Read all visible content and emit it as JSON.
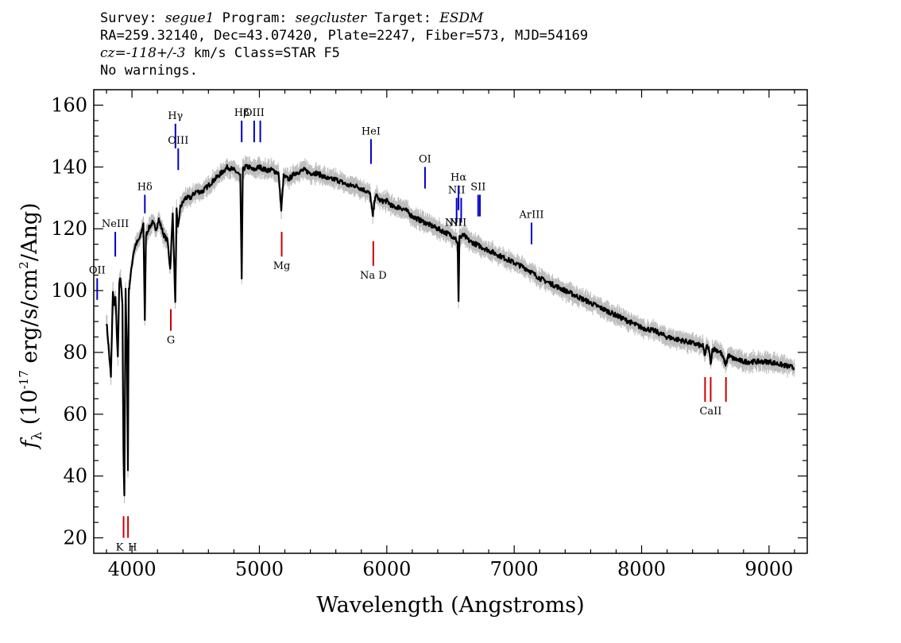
{
  "header": {
    "survey_label": "Survey:",
    "survey": "segue1",
    "program_label": "Program:",
    "program": "segcluster",
    "target_label": "Target:",
    "target": "ESDM",
    "line2": "RA=259.32140, Dec=43.07420, Plate=2247, Fiber=573, MJD=54169",
    "cz": "cz=-118+/-3",
    "cz_rest": " km/s Class=STAR F5",
    "warnings": "No warnings."
  },
  "chart_data": {
    "type": "line",
    "xlabel": "Wavelength (Angstroms)",
    "ylabel": "f_λ (10^-17 erg/s/cm^2/Ang)",
    "xlim": [
      3700,
      9300
    ],
    "ylim": [
      15,
      165
    ],
    "xticks": [
      4000,
      5000,
      6000,
      7000,
      8000,
      9000
    ],
    "yticks": [
      20,
      40,
      60,
      80,
      100,
      120,
      140,
      160
    ],
    "grid": false,
    "colors": {
      "flux": "#000000",
      "error_band": "#bdbdbd",
      "emission": "#0000cc",
      "absorption": "#cc0000"
    },
    "series": [
      {
        "x": [
          3800,
          3820,
          3835,
          3850,
          3860,
          3870,
          3889,
          3900,
          3910,
          3925,
          3933,
          3940,
          3950,
          3960,
          3968,
          3975,
          3990,
          4010,
          4030,
          4050,
          4070,
          4090,
          4101,
          4110,
          4130,
          4160,
          4190,
          4210,
          4250,
          4280,
          4300,
          4320,
          4340,
          4350,
          4360,
          4380,
          4420,
          4460,
          4500,
          4550,
          4600,
          4650,
          4700,
          4750,
          4800,
          4830,
          4850,
          4861,
          4870,
          4890,
          4920,
          4950,
          5000,
          5050,
          5100,
          5150,
          5172,
          5190,
          5230,
          5280,
          5350,
          5400,
          5450,
          5500,
          5550,
          5600,
          5650,
          5700,
          5750,
          5800,
          5850,
          5870,
          5890,
          5910,
          5950,
          6000,
          6050,
          6100,
          6150,
          6200,
          6250,
          6300,
          6350,
          6400,
          6450,
          6500,
          6540,
          6556,
          6563,
          6570,
          6580,
          6600,
          6650,
          6700,
          6750,
          6800,
          6850,
          6900,
          6950,
          7000,
          7100,
          7200,
          7300,
          7400,
          7500,
          7600,
          7700,
          7800,
          7900,
          8000,
          8100,
          8200,
          8300,
          8400,
          8480,
          8498,
          8510,
          8530,
          8542,
          8555,
          8580,
          8620,
          8662,
          8680,
          8720,
          8800,
          8900,
          9000,
          9100,
          9200
        ],
        "y": [
          90,
          80,
          72,
          100,
          95,
          98,
          78,
          102,
          104,
          96,
          48,
          33,
          100,
          82,
          42,
          100,
          105,
          112,
          115,
          116,
          118,
          122,
          90,
          118,
          120,
          122,
          120,
          123,
          118,
          116,
          107,
          125,
          96,
          126,
          120,
          127,
          130,
          130,
          132,
          132,
          134,
          136,
          138,
          140,
          139,
          138,
          137,
          104,
          139,
          140,
          140,
          139,
          140,
          139,
          139,
          138,
          126,
          137,
          136,
          138,
          139,
          138,
          138,
          137,
          136,
          136,
          135,
          134,
          134,
          133,
          132,
          131,
          124,
          131,
          129,
          129,
          127,
          127,
          126,
          124,
          123,
          122,
          121,
          120,
          119,
          118,
          117,
          115,
          96,
          118,
          117,
          118,
          116,
          115,
          114,
          113,
          112,
          111,
          110,
          109,
          107,
          104,
          102,
          100,
          98,
          96,
          94,
          92,
          90,
          88,
          87,
          85,
          84,
          83,
          82,
          79,
          82,
          81,
          76,
          81,
          81,
          80,
          76,
          79,
          78,
          77,
          77,
          77,
          76,
          75
        ]
      }
    ],
    "line_markers": [
      {
        "label": "OII",
        "x": 3727,
        "kind": "emission",
        "y_from": 97,
        "y_to": 104
      },
      {
        "label": "NeIII",
        "x": 3869,
        "kind": "emission",
        "y_from": 111,
        "y_to": 119
      },
      {
        "label": "Hδ",
        "x": 4101,
        "kind": "emission",
        "y_from": 125,
        "y_to": 131
      },
      {
        "label": "Hγ",
        "x": 4341,
        "kind": "emission",
        "y_from": 146,
        "y_to": 154
      },
      {
        "label": "OIII",
        "x": 4363,
        "kind": "emission",
        "y_from": 139,
        "y_to": 146
      },
      {
        "label": "Hβ",
        "x": 4861,
        "kind": "emission",
        "y_from": 148,
        "y_to": 155
      },
      {
        "label": "OIII",
        "x": 4959,
        "kind": "emission",
        "y_from": 148,
        "y_to": 155
      },
      {
        "label": "",
        "x": 5007,
        "kind": "emission",
        "y_from": 148,
        "y_to": 155
      },
      {
        "label": "HeI",
        "x": 5876,
        "kind": "emission",
        "y_from": 141,
        "y_to": 149
      },
      {
        "label": "OI",
        "x": 6300,
        "kind": "emission",
        "y_from": 133,
        "y_to": 140
      },
      {
        "label": "NII",
        "x": 6548,
        "kind": "emission",
        "y_from": 122,
        "y_to": 130
      },
      {
        "label": "Hα",
        "x": 6563,
        "kind": "emission",
        "y_from": 126,
        "y_to": 134
      },
      {
        "label": "",
        "x": 6584,
        "kind": "emission",
        "y_from": 122,
        "y_to": 130
      },
      {
        "label": "SII",
        "x": 6717,
        "kind": "emission",
        "y_from": 124,
        "y_to": 131
      },
      {
        "label": "",
        "x": 6731,
        "kind": "emission",
        "y_from": 124,
        "y_to": 131
      },
      {
        "label": "ArIII",
        "x": 7136,
        "kind": "emission",
        "y_from": 115,
        "y_to": 122
      },
      {
        "label": "K",
        "x": 3934,
        "kind": "absorption",
        "y_from": 20,
        "y_to": 27
      },
      {
        "label": "H",
        "x": 3969,
        "kind": "absorption",
        "y_from": 20,
        "y_to": 27
      },
      {
        "label": "G",
        "x": 4305,
        "kind": "absorption",
        "y_from": 87,
        "y_to": 94
      },
      {
        "label": "Mg",
        "x": 5175,
        "kind": "absorption",
        "y_from": 111,
        "y_to": 119
      },
      {
        "label": "Na D",
        "x": 5894,
        "kind": "absorption",
        "y_from": 108,
        "y_to": 116
      },
      {
        "label": "",
        "x": 8498,
        "kind": "absorption",
        "y_from": 64,
        "y_to": 72
      },
      {
        "label": "CaII",
        "x": 8542,
        "kind": "absorption",
        "y_from": 64,
        "y_to": 72
      },
      {
        "label": "",
        "x": 8662,
        "kind": "absorption",
        "y_from": 64,
        "y_to": 72
      }
    ],
    "extra_line_labels": [
      {
        "label": "NII",
        "x": 6548
      },
      {
        "label": "NII",
        "x": 6584
      }
    ]
  }
}
